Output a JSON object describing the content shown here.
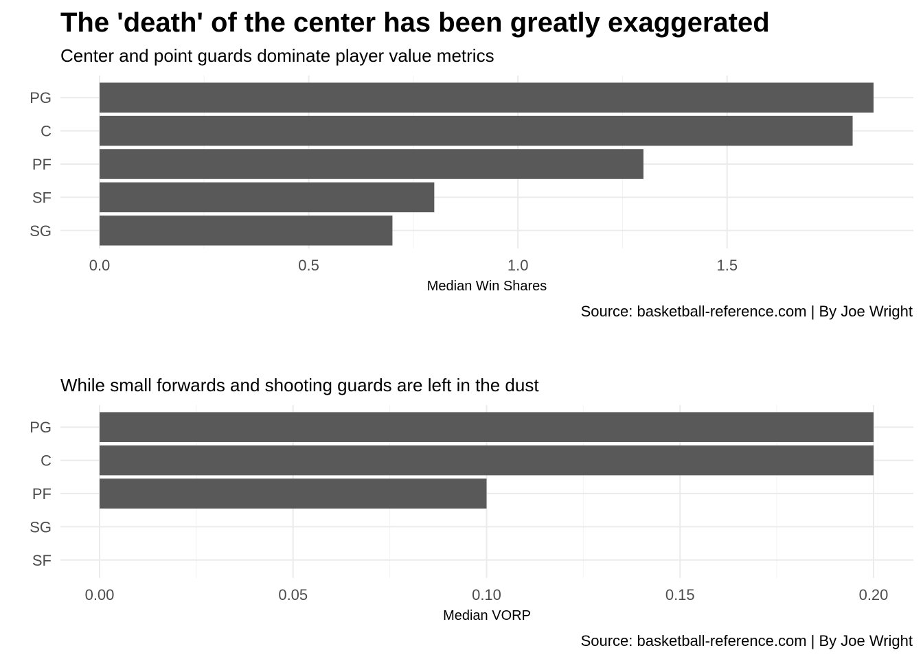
{
  "page": {
    "title": "The 'death' of the center has been greatly exaggerated"
  },
  "colors": {
    "bar": "#595959",
    "grid": "#ebebeb",
    "tick_text": "#4d4d4d"
  },
  "chart_data": [
    {
      "type": "bar",
      "orientation": "horizontal",
      "subtitle": "Center and point guards dominate player value metrics",
      "xlabel": "Median Win Shares",
      "caption": "Source: basketball-reference.com | By Joe Wright",
      "categories": [
        "PG",
        "C",
        "PF",
        "SF",
        "SG"
      ],
      "values": [
        1.85,
        1.8,
        1.3,
        0.8,
        0.7
      ],
      "xlim": [
        0,
        1.85
      ],
      "xticks": [
        0.0,
        0.5,
        1.0,
        1.5
      ],
      "xtick_labels": [
        "0.0",
        "0.5",
        "1.0",
        "1.5"
      ],
      "grid": true
    },
    {
      "type": "bar",
      "orientation": "horizontal",
      "subtitle": "While small forwards and shooting guards are left in the dust",
      "xlabel": "Median VORP",
      "caption": "Source: basketball-reference.com | By Joe Wright",
      "categories": [
        "PG",
        "C",
        "PF",
        "SG",
        "SF"
      ],
      "values": [
        0.2,
        0.2,
        0.1,
        0.0,
        0.0
      ],
      "xlim": [
        0,
        0.2
      ],
      "xticks": [
        0.0,
        0.05,
        0.1,
        0.15,
        0.2
      ],
      "xtick_labels": [
        "0.00",
        "0.05",
        "0.10",
        "0.15",
        "0.20"
      ],
      "grid": true
    }
  ]
}
